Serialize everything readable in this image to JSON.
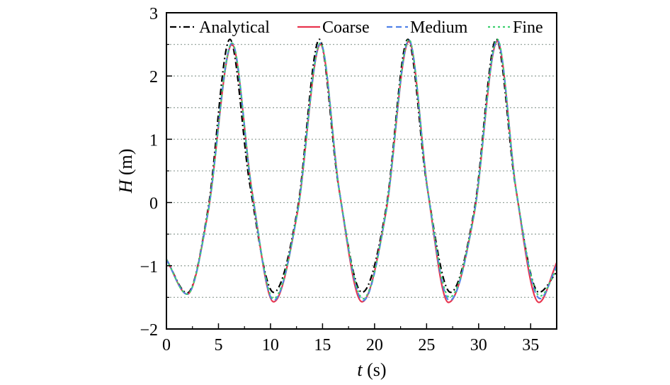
{
  "chart_data": {
    "type": "line",
    "xlabel_var": "t",
    "xlabel_unit": " (s)",
    "ylabel_var": "H",
    "ylabel_unit": " (m)",
    "xlim": [
      0,
      37.5
    ],
    "ylim": [
      -2,
      3
    ],
    "xticks": [
      0,
      5,
      10,
      15,
      20,
      25,
      30,
      35
    ],
    "yticks": [
      -2,
      -1,
      0,
      1,
      2,
      3
    ],
    "ytick_labels": [
      "−2",
      "−1",
      "0",
      "1",
      "2",
      "3"
    ],
    "grid": "horizontal dotted at every 0.5 m",
    "legend_position": "top",
    "series": [
      {
        "name": "Analytical",
        "color": "#000000",
        "style": "dash-dot",
        "x": [
          0,
          2,
          4,
          6.1,
          8,
          10.3,
          12.6,
          14.7,
          16.5,
          18.8,
          21.1,
          23.2,
          25,
          27.3,
          29.6,
          31.7,
          33.5,
          35.8,
          37.5
        ],
        "y": [
          -0.9,
          -1.43,
          -0.1,
          2.58,
          0.3,
          -1.42,
          -0.1,
          2.58,
          0.3,
          -1.42,
          -0.1,
          2.58,
          0.3,
          -1.42,
          -0.1,
          2.58,
          0.3,
          -1.42,
          -1.1
        ]
      },
      {
        "name": "Coarse",
        "color": "#e8344e",
        "style": "solid",
        "x": [
          0,
          2,
          4,
          6.3,
          8.2,
          10.3,
          12.6,
          14.8,
          16.6,
          18.8,
          21.1,
          23.3,
          25.1,
          27.1,
          29.6,
          31.8,
          33.6,
          35.8,
          37.5
        ],
        "y": [
          -0.9,
          -1.45,
          -0.15,
          2.5,
          0.2,
          -1.57,
          -0.15,
          2.5,
          0.2,
          -1.57,
          -0.15,
          2.55,
          0.2,
          -1.58,
          -0.15,
          2.55,
          0.2,
          -1.58,
          -0.95
        ]
      },
      {
        "name": "Medium",
        "color": "#4f81e8",
        "style": "dashed",
        "x": [
          0,
          2,
          4,
          6.3,
          8.2,
          10.3,
          12.6,
          14.8,
          16.6,
          18.9,
          21.1,
          23.3,
          25.1,
          27.2,
          29.6,
          31.8,
          33.6,
          35.9,
          37.5
        ],
        "y": [
          -0.9,
          -1.45,
          -0.15,
          2.52,
          0.2,
          -1.55,
          -0.15,
          2.52,
          0.2,
          -1.55,
          -0.15,
          2.57,
          0.2,
          -1.55,
          -0.15,
          2.57,
          0.2,
          -1.52,
          -1.0
        ]
      },
      {
        "name": "Fine",
        "color": "#3fd070",
        "style": "dotted",
        "x": [
          0,
          2,
          4,
          6.3,
          8.2,
          10.3,
          12.6,
          14.8,
          16.6,
          18.9,
          21.1,
          23.3,
          25.1,
          27.2,
          29.6,
          31.8,
          33.6,
          35.9,
          37.5
        ],
        "y": [
          -0.9,
          -1.45,
          -0.15,
          2.52,
          0.2,
          -1.52,
          -0.15,
          2.52,
          0.2,
          -1.52,
          -0.15,
          2.58,
          0.2,
          -1.5,
          -0.15,
          2.58,
          0.2,
          -1.48,
          -1.05
        ]
      }
    ]
  }
}
